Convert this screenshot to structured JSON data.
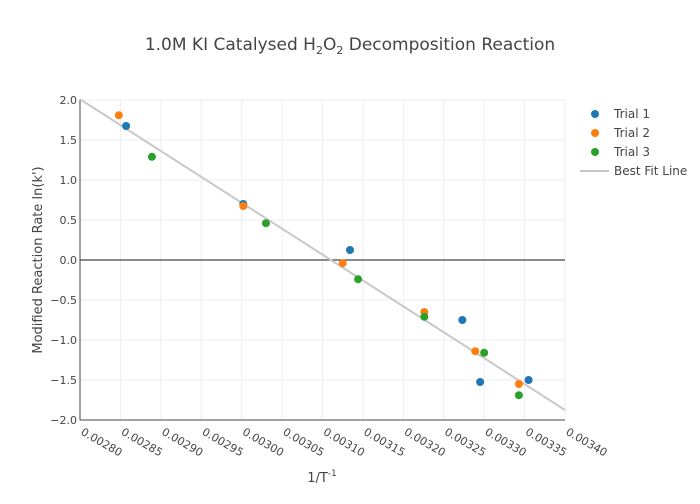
{
  "chart_data": {
    "type": "scatter",
    "title": "1.0M KI Catalysed H2O2 Decomposition Reaction",
    "title_parts": {
      "a": "1.0M KI Catalysed H",
      "s1": "2",
      "b": "O",
      "s2": "2",
      "c": " Decomposition Reaction"
    },
    "xlabel": "1/T",
    "xlabel_sup": "-1",
    "ylabel": "Modified Reaction Rate ln(k')",
    "xlim": [
      0.0028,
      0.0034
    ],
    "ylim": [
      -2.0,
      2.0
    ],
    "xticks": [
      "0.00280",
      "0.00285",
      "0.00290",
      "0.00295",
      "0.00300",
      "0.00305",
      "0.00310",
      "0.00315",
      "0.00320",
      "0.00325",
      "0.00330",
      "0.00335",
      "0.00340"
    ],
    "yticks": [
      "2.0",
      "1.5",
      "1.0",
      "0.5",
      "0.0",
      "−0.5",
      "−1.0",
      "−1.5",
      "−2.0"
    ],
    "grid": true,
    "legend_position": "right",
    "series": [
      {
        "name": "Trial 1",
        "color": "#1f77b4",
        "x": [
          0.002857,
          0.003002,
          0.003134,
          0.003273,
          0.003295,
          0.003355
        ],
        "y": [
          1.675,
          0.7,
          0.125,
          -0.75,
          -1.525,
          -1.5
        ]
      },
      {
        "name": "Trial 2",
        "color": "#ff7f0e",
        "x": [
          0.002848,
          0.003002,
          0.003125,
          0.003226,
          0.003289,
          0.003343
        ],
        "y": [
          1.81,
          0.675,
          -0.04,
          -0.65,
          -1.14,
          -1.55
        ]
      },
      {
        "name": "Trial 3",
        "color": "#2ca02c",
        "x": [
          0.002889,
          0.00303,
          0.003144,
          0.003226,
          0.0033,
          0.003343
        ],
        "y": [
          1.29,
          0.46,
          -0.24,
          -0.71,
          -1.16,
          -1.69
        ]
      }
    ],
    "fit_line": {
      "name": "Best Fit Line",
      "color": "#c8c8c8",
      "x": [
        0.0028,
        0.0034
      ],
      "y": [
        2.01,
        -1.875
      ]
    }
  }
}
